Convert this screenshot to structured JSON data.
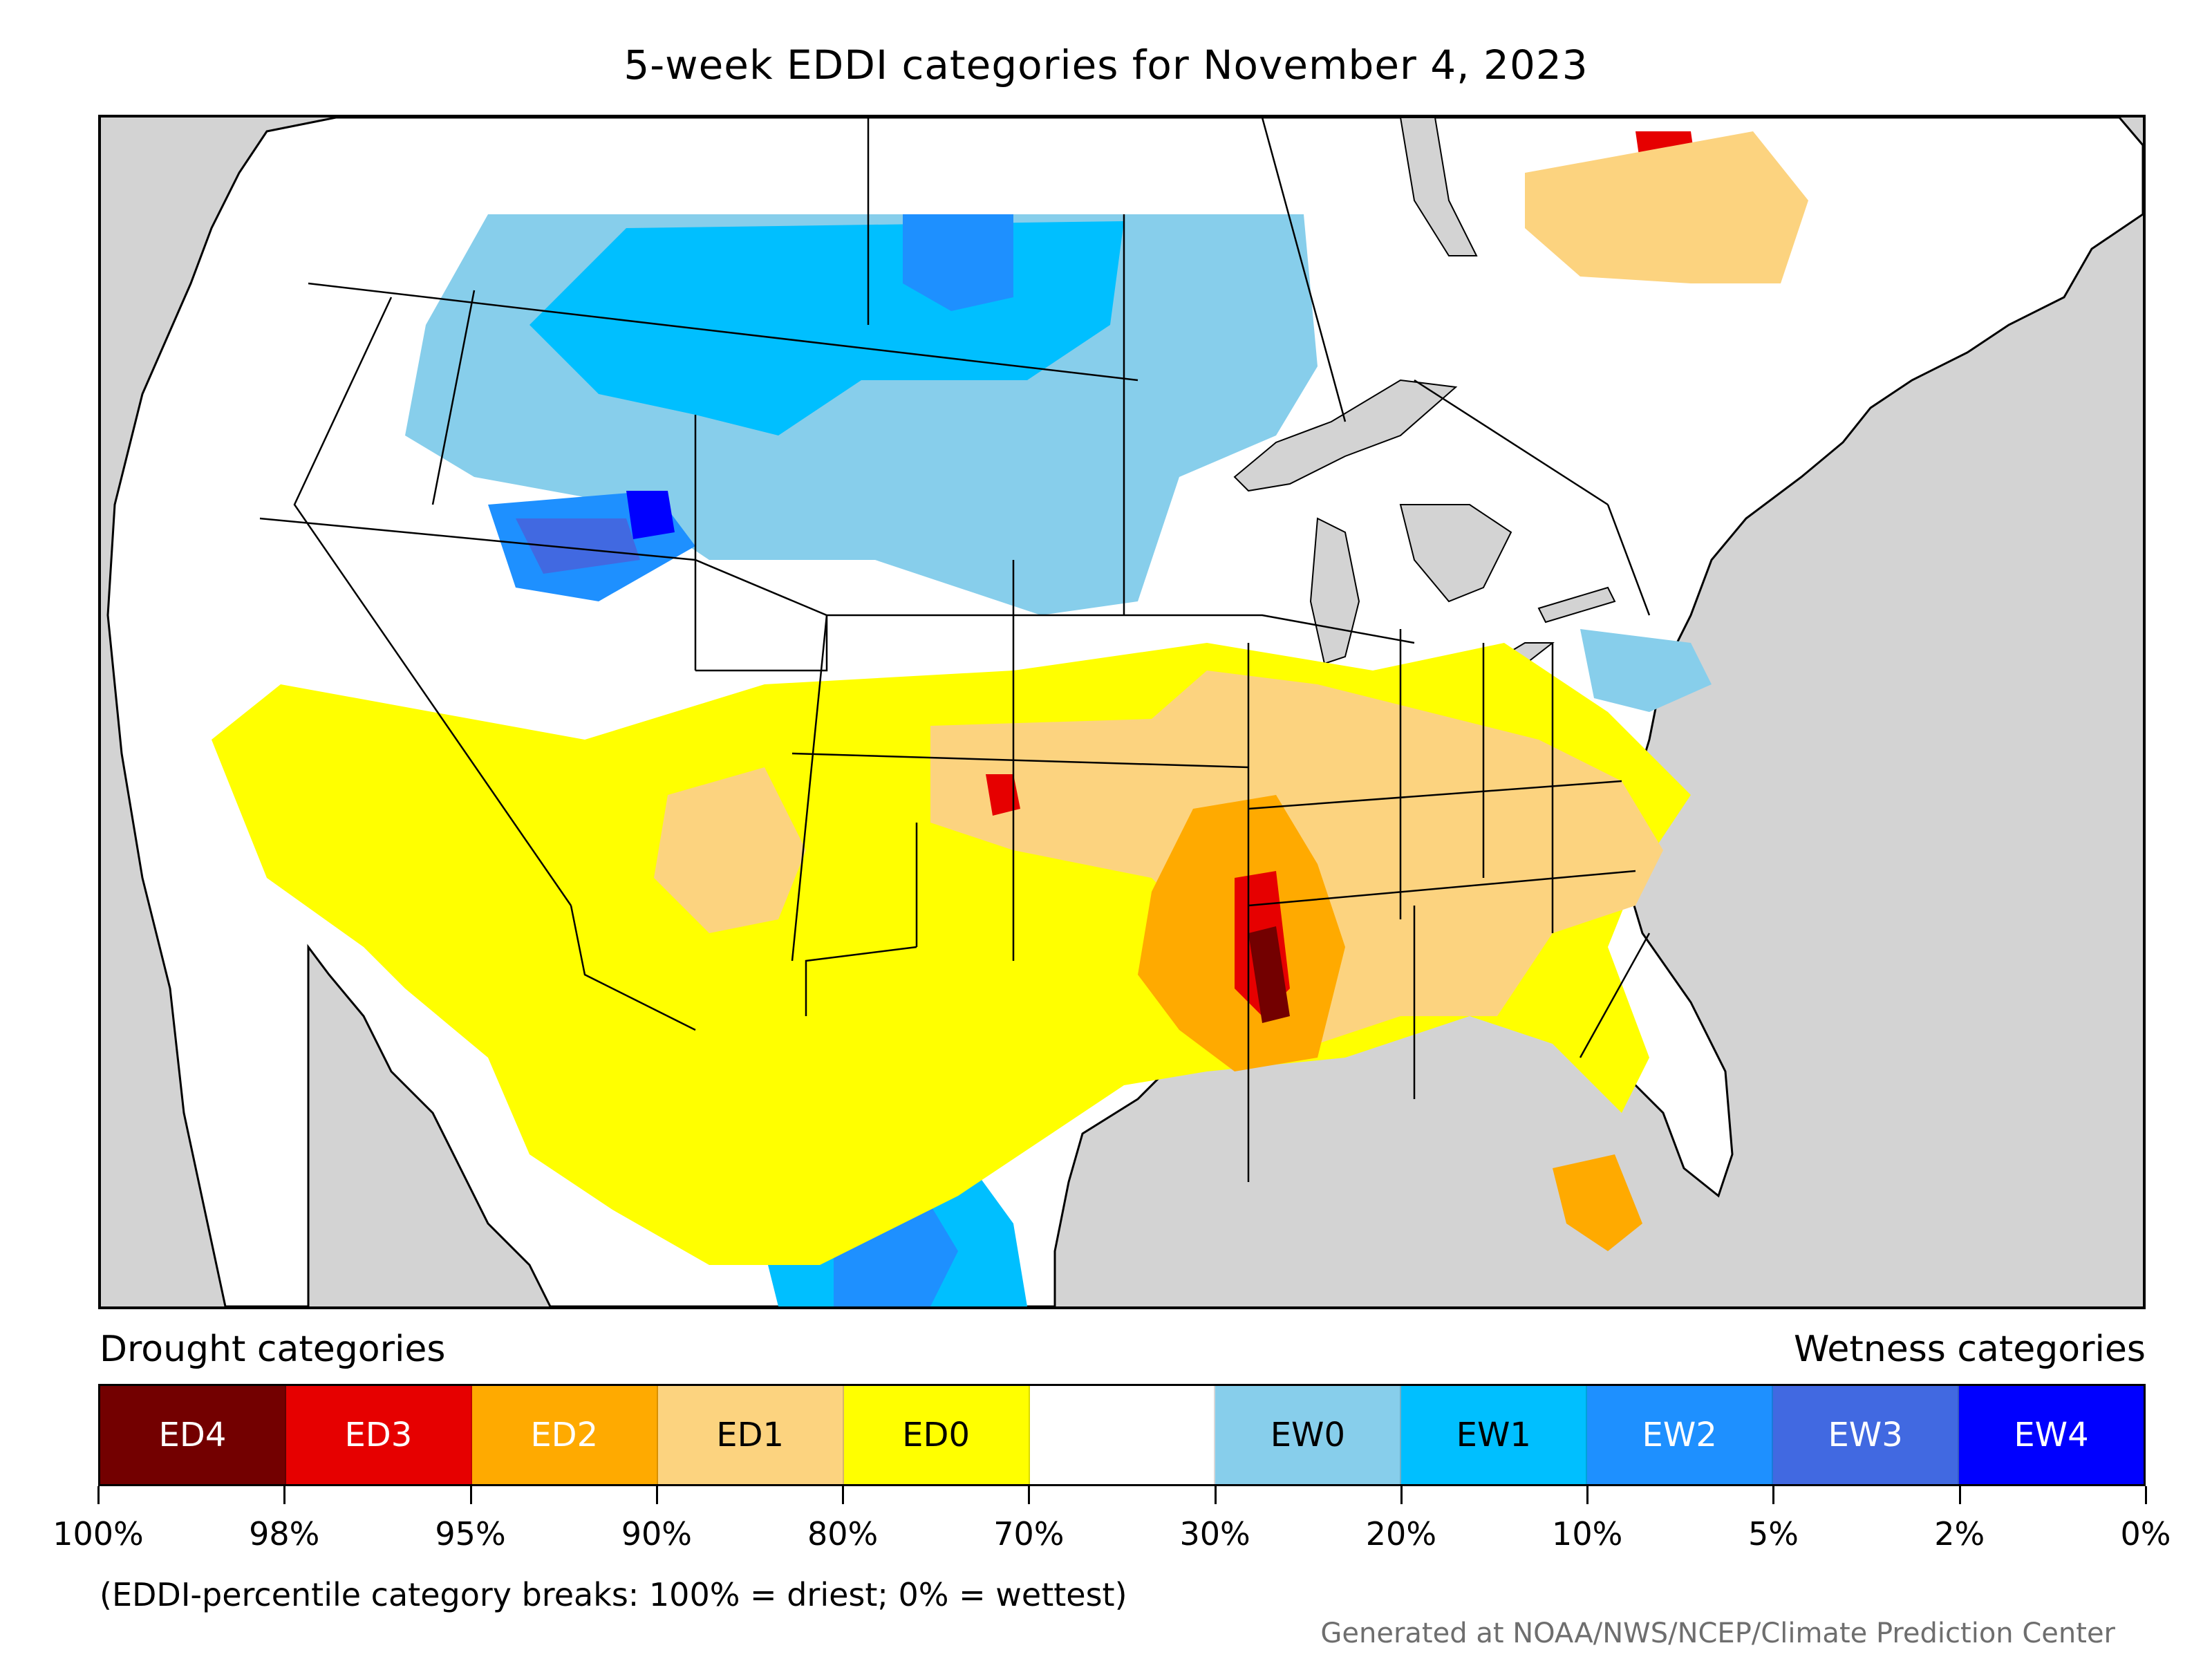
{
  "title": "5-week EDDI categories for November 4, 2023",
  "legend": {
    "drought_heading": "Drought categories",
    "wetness_heading": "Wetness categories",
    "categories": [
      {
        "label": "ED4",
        "color": "#730000",
        "text_color": "#ffffff"
      },
      {
        "label": "ED3",
        "color": "#e60000",
        "text_color": "#ffffff"
      },
      {
        "label": "ED2",
        "color": "#ffaa00",
        "text_color": "#ffffff"
      },
      {
        "label": "ED1",
        "color": "#fcd37f",
        "text_color": "#000000"
      },
      {
        "label": "ED0",
        "color": "#ffff00",
        "text_color": "#000000"
      },
      {
        "label": "",
        "color": "#ffffff",
        "text_color": "#000000"
      },
      {
        "label": "EW0",
        "color": "#87ceeb",
        "text_color": "#000000"
      },
      {
        "label": "EW1",
        "color": "#00bfff",
        "text_color": "#000000"
      },
      {
        "label": "EW2",
        "color": "#1e90ff",
        "text_color": "#ffffff"
      },
      {
        "label": "EW3",
        "color": "#4169e1",
        "text_color": "#ffffff"
      },
      {
        "label": "EW4",
        "color": "#0000ff",
        "text_color": "#ffffff"
      }
    ],
    "ticks": [
      "100%",
      "98%",
      "95%",
      "90%",
      "80%",
      "70%",
      "30%",
      "20%",
      "10%",
      "5%",
      "2%",
      "0%"
    ]
  },
  "note": "(EDDI-percentile category breaks: 100% = driest; 0% = wettest)",
  "credit": "Generated at NOAA/NWS/NCEP/Climate Prediction Center",
  "colors": {
    "ocean": "#d3d3d3",
    "land": "#ffffff",
    "border": "#000000"
  }
}
